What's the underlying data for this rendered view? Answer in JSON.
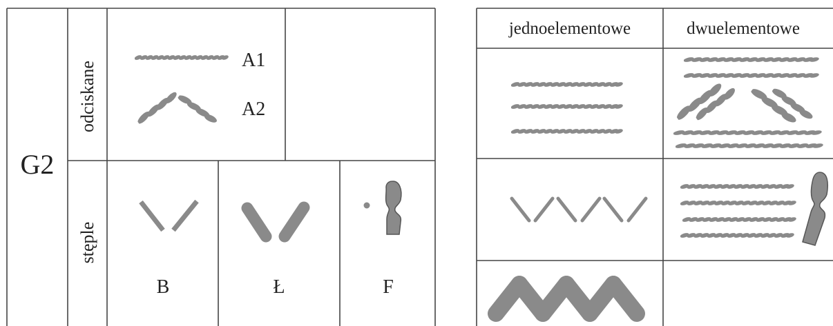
{
  "left": {
    "group": "G2",
    "rows": [
      "odciskane",
      "stęple"
    ],
    "labels": [
      "A1",
      "A2",
      "B",
      "Ł",
      "F"
    ]
  },
  "right": {
    "headers": [
      "jednoelementowe",
      "dwuelementowe"
    ]
  }
}
